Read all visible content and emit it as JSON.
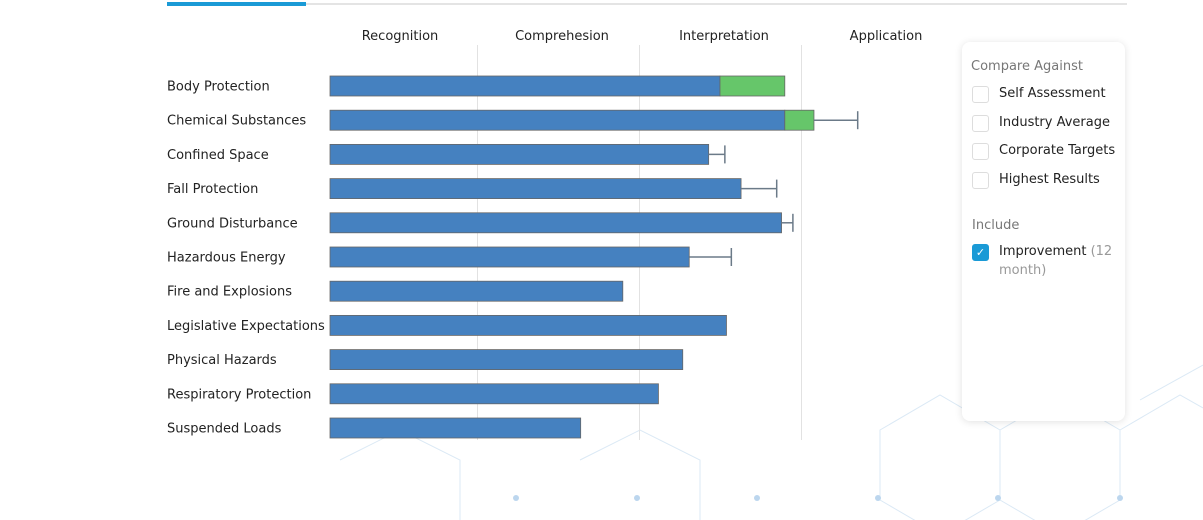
{
  "tabs": {
    "active_index": 0
  },
  "chart_data": {
    "type": "bar",
    "orientation": "horizontal",
    "stacked": true,
    "levels": [
      "Recognition",
      "Comprehesion",
      "Interpretation",
      "Application"
    ],
    "xlim": [
      0,
      4
    ],
    "grid": true,
    "categories": [
      "Body Protection",
      "Chemical Substances",
      "Confined Space",
      "Fall Protection",
      "Ground Disturbance",
      "Hazardous Energy",
      "Fire and Explosions",
      "Legislative Expectations",
      "Physical Hazards",
      "Respiratory Protection",
      "Suspended Loads"
    ],
    "series": [
      {
        "key": "score",
        "color": "#4581c0",
        "values": [
          2.5,
          2.9,
          2.43,
          2.63,
          2.88,
          2.31,
          1.9,
          2.54,
          2.27,
          2.12,
          1.64
        ]
      },
      {
        "key": "improvement",
        "color": "#66c66a",
        "values": [
          0.4,
          0.18,
          0,
          0,
          0,
          0,
          0,
          0,
          0,
          0,
          0
        ]
      }
    ],
    "error_upper": [
      null,
      3.35,
      2.53,
      2.85,
      2.95,
      2.57,
      null,
      null,
      null,
      null,
      null
    ]
  },
  "panel": {
    "compare_title": "Compare Against",
    "compare": [
      {
        "label": "Self Assessment",
        "checked": false
      },
      {
        "label": "Industry Average",
        "checked": false
      },
      {
        "label": "Corporate Targets",
        "checked": false
      },
      {
        "label": "Highest Results",
        "checked": false
      }
    ],
    "include_title": "Include",
    "include": {
      "label": "Improvement",
      "suffix": "(12 month)",
      "checked": true
    }
  }
}
